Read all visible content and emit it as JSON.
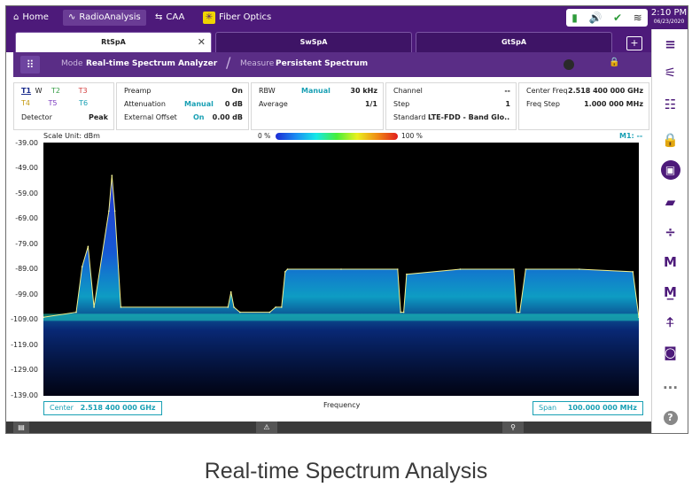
{
  "topbar": {
    "home": "Home",
    "radio": "RadioAnalysis",
    "caa": "CAA",
    "fiber": "Fiber Optics",
    "time": "2:10 PM",
    "date": "06/23/2020"
  },
  "tabs": [
    {
      "label": "RtSpA",
      "active": true
    },
    {
      "label": "SwSpA",
      "active": false
    },
    {
      "label": "GtSpA",
      "active": false
    }
  ],
  "modebar": {
    "mode_label": "Mode",
    "mode_value": "Real-time Spectrum Analyzer",
    "measure_label": "Measure",
    "measure_value": "Persistent Spectrum"
  },
  "traces": {
    "t1": "T1",
    "w": "W",
    "t2": "T2",
    "t3": "T3",
    "t4": "T4",
    "t5": "T5",
    "t6": "T6",
    "detector_label": "Detector",
    "detector_value": "Peak"
  },
  "amp_panel": {
    "preamp_label": "Preamp",
    "preamp_value": "On",
    "atten_label": "Attenuation",
    "atten_mode": "Manual",
    "atten_value": "0 dB",
    "ext_offset_label": "External Offset",
    "ext_offset_mode": "On",
    "ext_offset_value": "0.00 dB"
  },
  "bw_panel": {
    "rbw_label": "RBW",
    "rbw_mode": "Manual",
    "rbw_value": "30 kHz",
    "average_label": "Average",
    "average_value": "1/1"
  },
  "channel_panel": {
    "channel_label": "Channel",
    "channel_value": "--",
    "step_label": "Step",
    "step_value": "1",
    "standard_label": "Standard",
    "standard_value": "LTE-FDD - Band Glo..."
  },
  "freq_panel": {
    "center_label": "Center Freq",
    "center_value": "2.518 400 000 GHz",
    "step_label": "Freq Step",
    "step_value": "1.000 000 MHz"
  },
  "chart": {
    "scale_unit": "Scale Unit: dBm",
    "grad_min": "0 %",
    "grad_max": "100 %",
    "marker": "M1: --",
    "y_ticks": [
      "-39.00",
      "-49.00",
      "-59.00",
      "-69.00",
      "-79.00",
      "-89.00",
      "-99.00",
      "-109.00",
      "-119.00",
      "-129.00",
      "-139.00"
    ],
    "x_label": "Frequency",
    "center_label": "Center",
    "center_value": "2.518 400 000 GHz",
    "span_label": "Span",
    "span_value": "100.000 000 MHz"
  },
  "chart_data": {
    "type": "area",
    "title": "",
    "ylabel": "Scale Unit: dBm",
    "xlabel": "Frequency",
    "ylim": [
      -139,
      -39
    ],
    "center_ghz": 2.5184,
    "span_mhz": 100,
    "x_fraction": [
      0.0,
      0.055,
      0.065,
      0.075,
      0.085,
      0.11,
      0.115,
      0.12,
      0.13,
      0.31,
      0.315,
      0.32,
      0.33,
      0.38,
      0.39,
      0.4,
      0.406,
      0.41,
      0.5,
      0.595,
      0.6,
      0.605,
      0.61,
      0.7,
      0.79,
      0.795,
      0.8,
      0.81,
      0.9,
      0.99,
      1.0
    ],
    "peak_dbm": [
      -108,
      -106,
      -88,
      -80,
      -104,
      -66,
      -52,
      -66,
      -104,
      -104,
      -98,
      -104,
      -106,
      -106,
      -104,
      -104,
      -90,
      -89,
      -89,
      -89,
      -106,
      -106,
      -91,
      -89,
      -89,
      -106,
      -106,
      -89,
      -89,
      -90,
      -108
    ]
  },
  "footer": {
    "warn": "⚠",
    "pin": "⚲",
    "menu": "▤"
  },
  "caption": "Real-time Spectrum Analysis",
  "colors": {
    "brand": "#4d1a7a",
    "accent": "#19a0b4"
  }
}
